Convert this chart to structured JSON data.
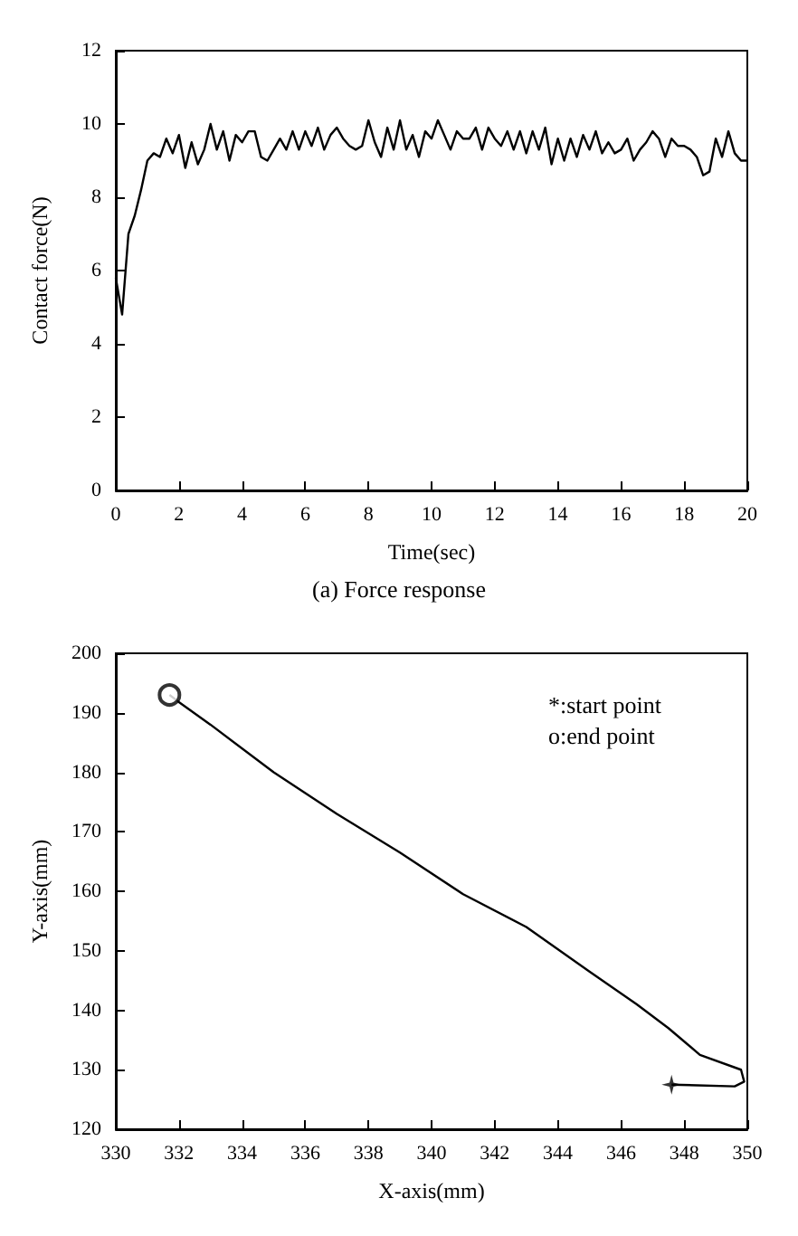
{
  "chart_data": [
    {
      "type": "line",
      "title": "(a) Force response",
      "xlabel": "Time(sec)",
      "ylabel": "Contact force(N)",
      "xlim": [
        0,
        20
      ],
      "ylim": [
        0,
        12
      ],
      "xticks": [
        0,
        2,
        4,
        6,
        8,
        10,
        12,
        14,
        16,
        18,
        20
      ],
      "yticks": [
        0,
        2,
        4,
        6,
        8,
        10,
        12
      ],
      "grid": false,
      "marker": "none",
      "x": [
        0,
        0.2,
        0.4,
        0.6,
        0.8,
        1.0,
        1.2,
        1.4,
        1.6,
        1.8,
        2.0,
        2.2,
        2.4,
        2.6,
        2.8,
        3.0,
        3.2,
        3.4,
        3.6,
        3.8,
        4.0,
        4.2,
        4.4,
        4.6,
        4.8,
        5.0,
        5.2,
        5.4,
        5.6,
        5.8,
        6.0,
        6.2,
        6.4,
        6.6,
        6.8,
        7.0,
        7.2,
        7.4,
        7.6,
        7.8,
        8.0,
        8.2,
        8.4,
        8.6,
        8.8,
        9.0,
        9.2,
        9.4,
        9.6,
        9.8,
        10.0,
        10.2,
        10.4,
        10.6,
        10.8,
        11.0,
        11.2,
        11.4,
        11.6,
        11.8,
        12.0,
        12.2,
        12.4,
        12.6,
        12.8,
        13.0,
        13.2,
        13.4,
        13.6,
        13.8,
        14.0,
        14.2,
        14.4,
        14.6,
        14.8,
        15.0,
        15.2,
        15.4,
        15.6,
        15.8,
        16.0,
        16.2,
        16.4,
        16.6,
        16.8,
        17.0,
        17.2,
        17.4,
        17.6,
        17.8,
        18.0,
        18.2,
        18.4,
        18.6,
        18.8,
        19.0,
        19.2,
        19.4,
        19.6,
        19.8,
        20.0
      ],
      "series": [
        {
          "color": "#000000",
          "values": [
            5.8,
            4.8,
            7.0,
            7.5,
            8.2,
            9.0,
            9.2,
            9.1,
            9.6,
            9.2,
            9.7,
            8.8,
            9.5,
            8.9,
            9.3,
            10.0,
            9.3,
            9.8,
            9.0,
            9.7,
            9.5,
            9.8,
            9.8,
            9.1,
            9.0,
            9.3,
            9.6,
            9.3,
            9.8,
            9.3,
            9.8,
            9.4,
            9.9,
            9.3,
            9.7,
            9.9,
            9.6,
            9.4,
            9.3,
            9.4,
            10.1,
            9.5,
            9.1,
            9.9,
            9.3,
            10.1,
            9.3,
            9.7,
            9.1,
            9.8,
            9.6,
            10.1,
            9.7,
            9.3,
            9.8,
            9.6,
            9.6,
            9.9,
            9.3,
            9.9,
            9.6,
            9.4,
            9.8,
            9.3,
            9.8,
            9.2,
            9.8,
            9.3,
            9.9,
            8.9,
            9.6,
            9.0,
            9.6,
            9.1,
            9.7,
            9.3,
            9.8,
            9.2,
            9.5,
            9.2,
            9.3,
            9.6,
            9.0,
            9.3,
            9.5,
            9.8,
            9.6,
            9.1,
            9.6,
            9.4,
            9.4,
            9.3,
            9.1,
            8.6,
            8.7,
            9.6,
            9.1,
            9.8,
            9.2,
            9.0,
            9.0
          ]
        }
      ]
    },
    {
      "type": "line",
      "xlabel": "X-axis(mm)",
      "ylabel": "Y-axis(mm)",
      "xlim": [
        330,
        350
      ],
      "ylim": [
        120,
        200
      ],
      "xticks": [
        330,
        332,
        334,
        336,
        338,
        340,
        342,
        344,
        346,
        348,
        350
      ],
      "yticks": [
        120,
        130,
        140,
        150,
        160,
        170,
        180,
        190,
        200
      ],
      "grid": false,
      "annotations": [
        "*:start point",
        "o:end point"
      ],
      "series": [
        {
          "color": "#000000",
          "marker": "none",
          "x": [
            347.6,
            349.6,
            349.9,
            349.8,
            348.5,
            347.5,
            346.5,
            345,
            343,
            341,
            339,
            337,
            335,
            333,
            332,
            331.7
          ],
          "values": [
            127.5,
            127.2,
            128,
            130,
            132.5,
            137,
            141,
            146.5,
            154,
            159.5,
            166.5,
            173,
            180,
            188,
            191.8,
            193
          ]
        },
        {
          "type": "scatter",
          "color": "#000000",
          "marker": "star",
          "x": [
            347.6
          ],
          "values": [
            127.5
          ]
        },
        {
          "type": "scatter",
          "color": "#000000",
          "marker": "circle",
          "x": [
            331.7
          ],
          "values": [
            193
          ]
        }
      ]
    }
  ]
}
